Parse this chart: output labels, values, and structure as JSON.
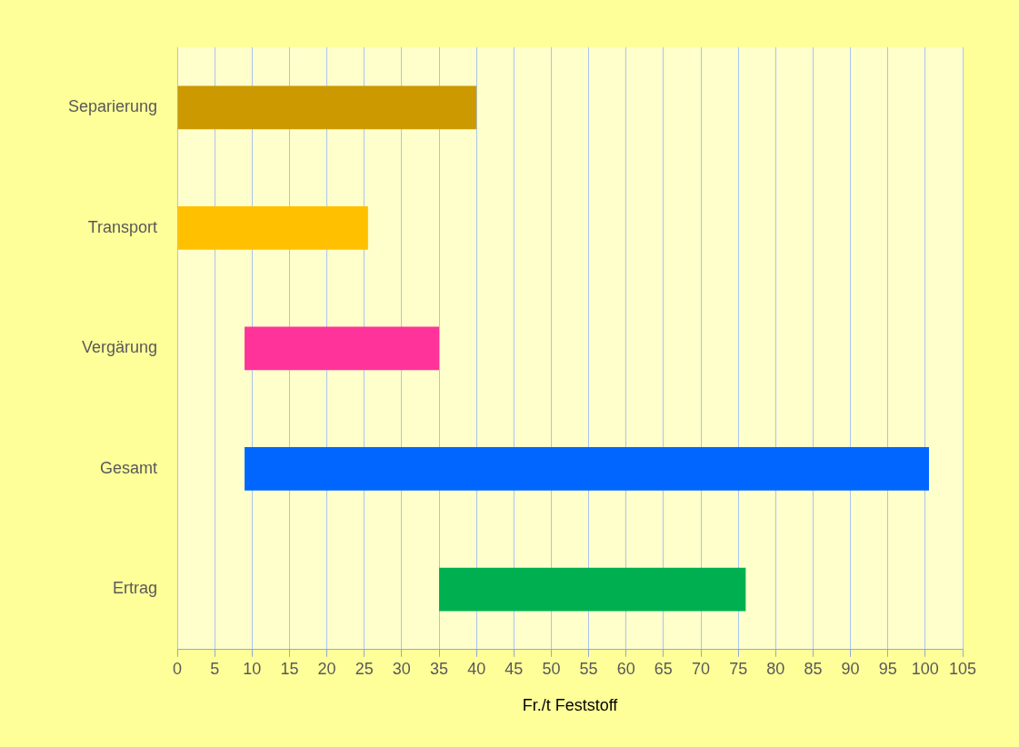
{
  "chart_data": {
    "type": "bar",
    "orientation": "horizontal",
    "categories": [
      "Separierung",
      "Transport",
      "Vergärung",
      "Gesamt",
      "Ertrag"
    ],
    "values": [
      40,
      25.5,
      26,
      91.5,
      41
    ],
    "base": [
      0,
      0,
      9,
      9,
      35
    ],
    "colors": [
      "#cc9900",
      "#ffc000",
      "#ff3399",
      "#0066ff",
      "#00b050"
    ],
    "xlabel": "Fr./t Feststoff",
    "xlim": [
      0,
      105
    ],
    "xticks": [
      0,
      5,
      10,
      15,
      20,
      25,
      30,
      35,
      40,
      45,
      50,
      55,
      60,
      65,
      70,
      75,
      80,
      85,
      90,
      95,
      100,
      105
    ],
    "grid": "x",
    "legend": false
  }
}
